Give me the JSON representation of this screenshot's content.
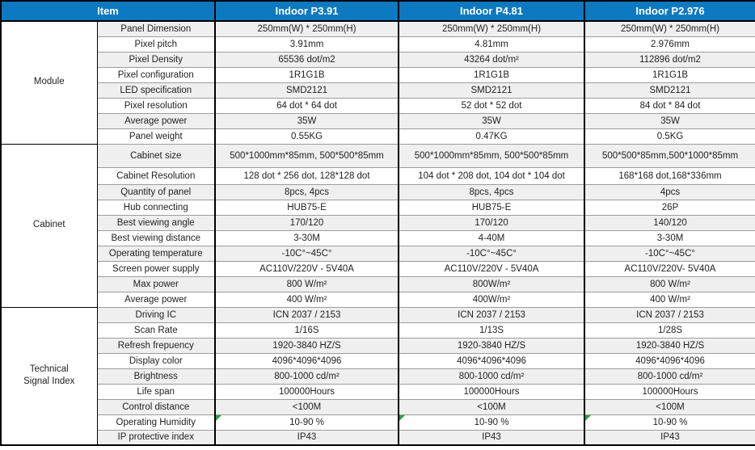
{
  "table": {
    "header": {
      "item_label": "Item",
      "columns": [
        "Indoor P3.91",
        "Indoor P4.81",
        "Indoor P2.976"
      ]
    },
    "sections": [
      {
        "group": "Module",
        "rows": [
          {
            "label": "Panel Dimension",
            "values": [
              "250mm(W) * 250mm(H)",
              "250mm(W) * 250mm(H)",
              "250mm(W) * 250mm(H)"
            ]
          },
          {
            "label": "Pixel pitch",
            "values": [
              "3.91mm",
              "4.81mm",
              "2.976mm"
            ]
          },
          {
            "label": "Pixel Density",
            "values": [
              "65536 dot/m2",
              "43264 dot/m²",
              "112896 dot/m2"
            ]
          },
          {
            "label": "Pixel configuration",
            "values": [
              "1R1G1B",
              "1R1G1B",
              "1R1G1B"
            ]
          },
          {
            "label": "LED specification",
            "values": [
              "SMD2121",
              "SMD2121",
              "SMD2121"
            ]
          },
          {
            "label": "Pixel resolution",
            "values": [
              "64 dot * 64 dot",
              "52 dot * 52 dot",
              "84 dot * 84 dot"
            ]
          },
          {
            "label": "Average power",
            "values": [
              "35W",
              "35W",
              "35W"
            ]
          },
          {
            "label": "Panel weight",
            "values": [
              "0.55KG",
              "0.47KG",
              "0.5KG"
            ]
          }
        ]
      },
      {
        "group": "Cabinet",
        "rows": [
          {
            "label": "Cabinet size",
            "height": 29,
            "values": [
              "500*1000mm*85mm, 500*500*85mm",
              "500*1000mm*85mm, 500*500*85mm",
              "500*500*85mm,500*1000*85mm"
            ]
          },
          {
            "label": "Cabinet Resolution",
            "height": 21,
            "values": [
              "128 dot * 256 dot, 128*128 dot",
              "104 dot * 208 dot, 104 dot * 104 dot",
              "168*168 dot,168*336mm"
            ]
          },
          {
            "label": "Quantity of panel",
            "values": [
              "8pcs, 4pcs",
              "8pcs, 4pcs",
              "4pcs"
            ]
          },
          {
            "label": "Hub connecting",
            "values": [
              "HUB75-E",
              "HUB75-E",
              "26P"
            ]
          },
          {
            "label": "Best viewing angle",
            "values": [
              "170/120",
              "170/120",
              "140/120"
            ]
          },
          {
            "label": "Best viewing distance",
            "values": [
              "3-30M",
              "4-40M",
              "3-30M"
            ]
          },
          {
            "label": "Operating temperature",
            "values": [
              "-10C°~45C°",
              "-10C°~45C°",
              "-10C°~45C°"
            ]
          },
          {
            "label": "Screen power supply",
            "values": [
              "AC110V/220V - 5V40A",
              "AC110V/220V - 5V40A",
              "AC110V/220V- 5V40A"
            ]
          },
          {
            "label": "Max power",
            "values": [
              "800 W/m²",
              "800W/m²",
              "800 W/m²"
            ]
          },
          {
            "label": "Average power",
            "values": [
              "400 W/m²",
              "400W/m²",
              "400 W/m²"
            ]
          }
        ]
      },
      {
        "group": "Technical Signal Index",
        "rows": [
          {
            "label": "Driving IC",
            "values": [
              "ICN 2037 / 2153",
              "ICN 2037 / 2153",
              "ICN 2037 / 2153"
            ]
          },
          {
            "label": "Scan Rate",
            "values": [
              "1/16S",
              "1/13S",
              "1/28S"
            ]
          },
          {
            "label": "Refresh frepuency",
            "values": [
              "1920-3840 HZ/S",
              "1920-3840 HZ/S",
              "1920-3840 HZ/S"
            ]
          },
          {
            "label": "Display color",
            "values": [
              "4096*4096*4096",
              "4096*4096*4096",
              "4096*4096*4096"
            ]
          },
          {
            "label": "Brightness",
            "values": [
              "800-1000 cd/m²",
              "800-1000 cd/m²",
              "800-1000 cd/m²"
            ]
          },
          {
            "label": "Life span",
            "values": [
              "100000Hours",
              "100000Hours",
              "100000Hours"
            ]
          },
          {
            "label": "Control distance",
            "values": [
              "<100M",
              "<100M",
              "<100M"
            ]
          },
          {
            "label": "Operating Humidity",
            "flag_cells": true,
            "values": [
              "10-90 %",
              "10-90 %",
              "10-90 %"
            ]
          },
          {
            "label": "IP protective index",
            "values": [
              "IP43",
              "IP43",
              "IP43"
            ]
          }
        ]
      }
    ],
    "colors": {
      "header_bg": "#0d79c0",
      "header_text": "#ffffff",
      "stripe_row_bg": "#efefef",
      "row_line": "#9c9c9c",
      "heavy_border": "#000000",
      "flag_triangle": "#2e9e4f"
    }
  }
}
